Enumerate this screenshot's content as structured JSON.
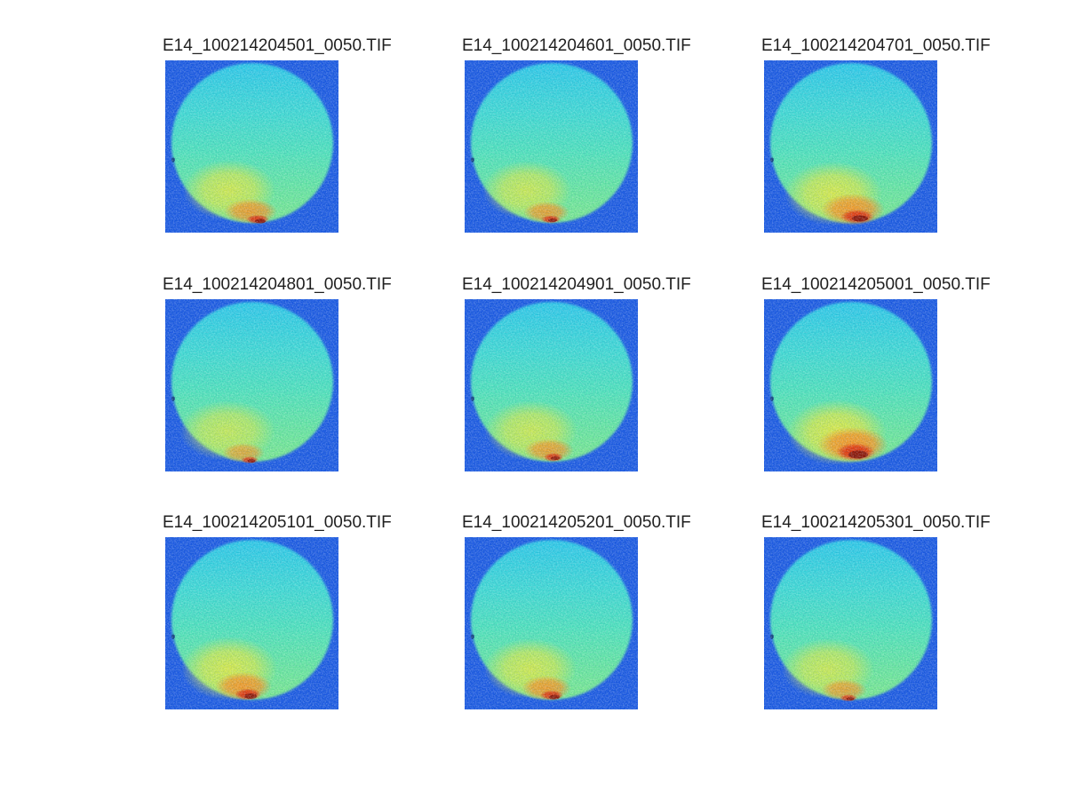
{
  "figure": {
    "type": "matlab-image-montage",
    "colormap": "jet",
    "background": "#ffffff",
    "colors": {
      "frame_blue": "#1b58e2",
      "disk_top_cyan": "#2cc8e8",
      "disk_upper_cyan": "#3fd9d4",
      "disk_mid_aqua": "#4fe2bb",
      "disk_green": "#68e69e",
      "disk_low_green": "#7ce88b",
      "blob_yellow": "#e3e93f",
      "hotspot_orange": "#f59322",
      "hotspot_red": "#e02c08",
      "hotspot_dark_red": "#8a1202",
      "speck_dark_blue": "#0c2a6e",
      "title_text": "#1f1f1f"
    },
    "subplots": [
      {
        "title": "E14_100214204501_0050.TIF",
        "hotspot": {
          "blob": [
            72,
            146,
            52,
            34,
            0.85
          ],
          "glow": [
            96,
            170,
            30,
            14,
            0.9
          ],
          "core": [
            104,
            179,
            13,
            5,
            0.95
          ],
          "dark": [
            107,
            181,
            6,
            2.5,
            0.9
          ]
        }
      },
      {
        "title": "E14_100214204601_0050.TIF",
        "hotspot": {
          "blob": [
            70,
            146,
            50,
            33,
            0.8
          ],
          "glow": [
            92,
            171,
            26,
            12,
            0.85
          ],
          "core": [
            97,
            179,
            11,
            4.5,
            0.9
          ],
          "dark": [
            99,
            180,
            5,
            2,
            0.85
          ]
        }
      },
      {
        "title": "E14_100214204701_0050.TIF",
        "hotspot": {
          "blob": [
            78,
            150,
            55,
            36,
            0.9
          ],
          "glow": [
            100,
            168,
            36,
            18,
            0.95
          ],
          "core": [
            105,
            176,
            19,
            8,
            0.95
          ],
          "dark": [
            108,
            178,
            9,
            3.5,
            0.95
          ]
        }
      },
      {
        "title": "E14_100214204801_0050.TIF",
        "hotspot": {
          "blob": [
            70,
            148,
            54,
            34,
            0.75
          ],
          "glow": [
            88,
            173,
            24,
            11,
            0.75
          ],
          "core": [
            95,
            181,
            10,
            4,
            0.85
          ],
          "dark": [
            97,
            182,
            4.5,
            2,
            0.8
          ]
        }
      },
      {
        "title": "E14_100214204901_0050.TIF",
        "hotspot": {
          "blob": [
            75,
            148,
            52,
            34,
            0.8
          ],
          "glow": [
            95,
            170,
            28,
            13,
            0.85
          ],
          "core": [
            100,
            178,
            11,
            5,
            0.9
          ],
          "dark": [
            102,
            179,
            5,
            2,
            0.85
          ]
        }
      },
      {
        "title": "E14_100214205001_0050.TIF",
        "hotspot": {
          "blob": [
            82,
            150,
            56,
            37,
            0.95
          ],
          "glow": [
            100,
            164,
            40,
            20,
            1
          ],
          "core": [
            103,
            172,
            22,
            10,
            0.97
          ],
          "dark": [
            106,
            175,
            11,
            4.5,
            0.95
          ]
        }
      },
      {
        "title": "E14_100214205101_0050.TIF",
        "hotspot": {
          "blob": [
            72,
            148,
            54,
            36,
            0.9
          ],
          "glow": [
            88,
            168,
            32,
            16,
            0.95
          ],
          "core": [
            93,
            177,
            15,
            6.5,
            0.95
          ],
          "dark": [
            96,
            179,
            7,
            3,
            0.9
          ]
        }
      },
      {
        "title": "E14_100214205201_0050.TIF",
        "hotspot": {
          "blob": [
            74,
            148,
            52,
            34,
            0.85
          ],
          "glow": [
            92,
            170,
            28,
            14,
            0.9
          ],
          "core": [
            98,
            178,
            13,
            5.5,
            0.92
          ],
          "dark": [
            101,
            180,
            6,
            2.5,
            0.9
          ]
        }
      },
      {
        "title": "E14_100214205301_0050.TIF",
        "hotspot": {
          "blob": [
            72,
            148,
            52,
            34,
            0.8
          ],
          "glow": [
            90,
            172,
            26,
            12,
            0.8
          ],
          "core": [
            95,
            181,
            10,
            4,
            0.85
          ],
          "dark": [
            97,
            182,
            4.5,
            1.8,
            0.8
          ]
        }
      }
    ]
  },
  "chart_data": {
    "type": "heatmap",
    "layout": "3x3 montage of TIF frames, colormap jet, no axes ticks or colorbar",
    "colormap": "jet",
    "panel_titles": [
      "E14_100214204501_0050.TIF",
      "E14_100214204601_0050.TIF",
      "E14_100214204701_0050.TIF",
      "E14_100214204801_0050.TIF",
      "E14_100214204901_0050.TIF",
      "E14_100214205001_0050.TIF",
      "E14_100214205101_0050.TIF",
      "E14_100214205201_0050.TIF",
      "E14_100214205301_0050.TIF"
    ],
    "panel_description": "Each panel: square field of low intensity (blue) containing a circular disk of mid intensity (cyan to green, increasing toward bottom) with an elevated-intensity region (yellow) in the lower-left and a peak-intensity hotspot (orange/red with dark-red core) at the bottom edge; hotspot strength varies per frame, strongest in frames 3, 6 and 7."
  }
}
